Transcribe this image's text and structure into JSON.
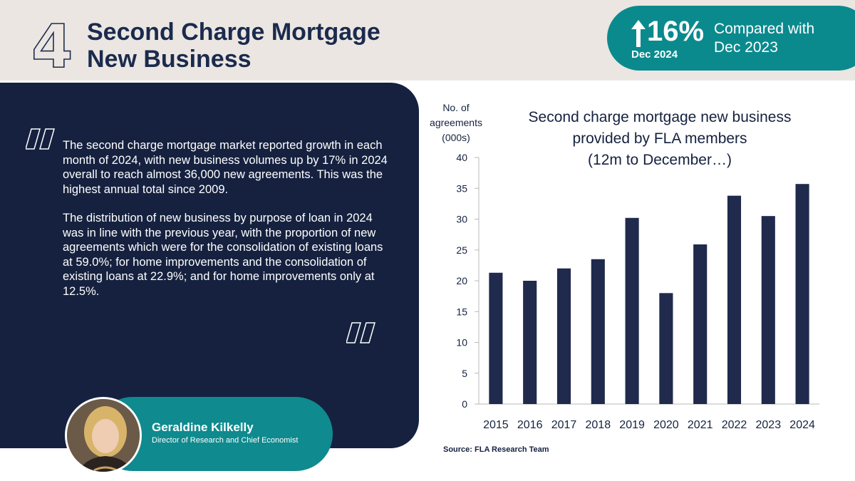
{
  "header": {
    "section_number": "4",
    "title_line1": "Second Charge Mortgage",
    "title_line2": "New Business"
  },
  "badge": {
    "change": "16%",
    "period": "Dec 2024",
    "compare_line1": "Compared with",
    "compare_line2": "Dec 2023",
    "direction": "up"
  },
  "quote": {
    "paragraph1": "The second charge mortgage market reported growth in each month of 2024, with new business volumes up by 17% in 2024 overall to reach almost 36,000 new agreements. This was the highest annual total since 2009.",
    "paragraph2": "The distribution of new business by purpose of loan in 2024 was in line with the previous year, with the proportion of new agreements which were for the consolidation of existing loans at 59.0%; for home improvements and the consolidation of existing loans at 22.9%; and for home improvements only at 12.5%."
  },
  "person": {
    "name": "Geraldine Kilkelly",
    "role": "Director of Research and Chief Economist"
  },
  "chart_data": {
    "type": "bar",
    "title_lines": [
      "Second charge mortgage new business",
      "provided by FLA members",
      "(12m to December…)"
    ],
    "ylabel_lines": [
      "No. of",
      "agreements",
      "(000s)"
    ],
    "categories": [
      "2015",
      "2016",
      "2017",
      "2018",
      "2019",
      "2020",
      "2021",
      "2022",
      "2023",
      "2024"
    ],
    "values": [
      21.3,
      20.0,
      22.0,
      23.5,
      30.2,
      18.0,
      25.9,
      33.8,
      30.5,
      35.7
    ],
    "ylim": [
      0,
      40
    ],
    "yticks": [
      0,
      5,
      10,
      15,
      20,
      25,
      30,
      35,
      40
    ],
    "grid": false,
    "bar_color": "#1f2a4c"
  },
  "source": "Source: FLA Research Team",
  "colors": {
    "navy": "#15213f",
    "teal": "#0b8a8e",
    "band": "#ebe6e1"
  }
}
